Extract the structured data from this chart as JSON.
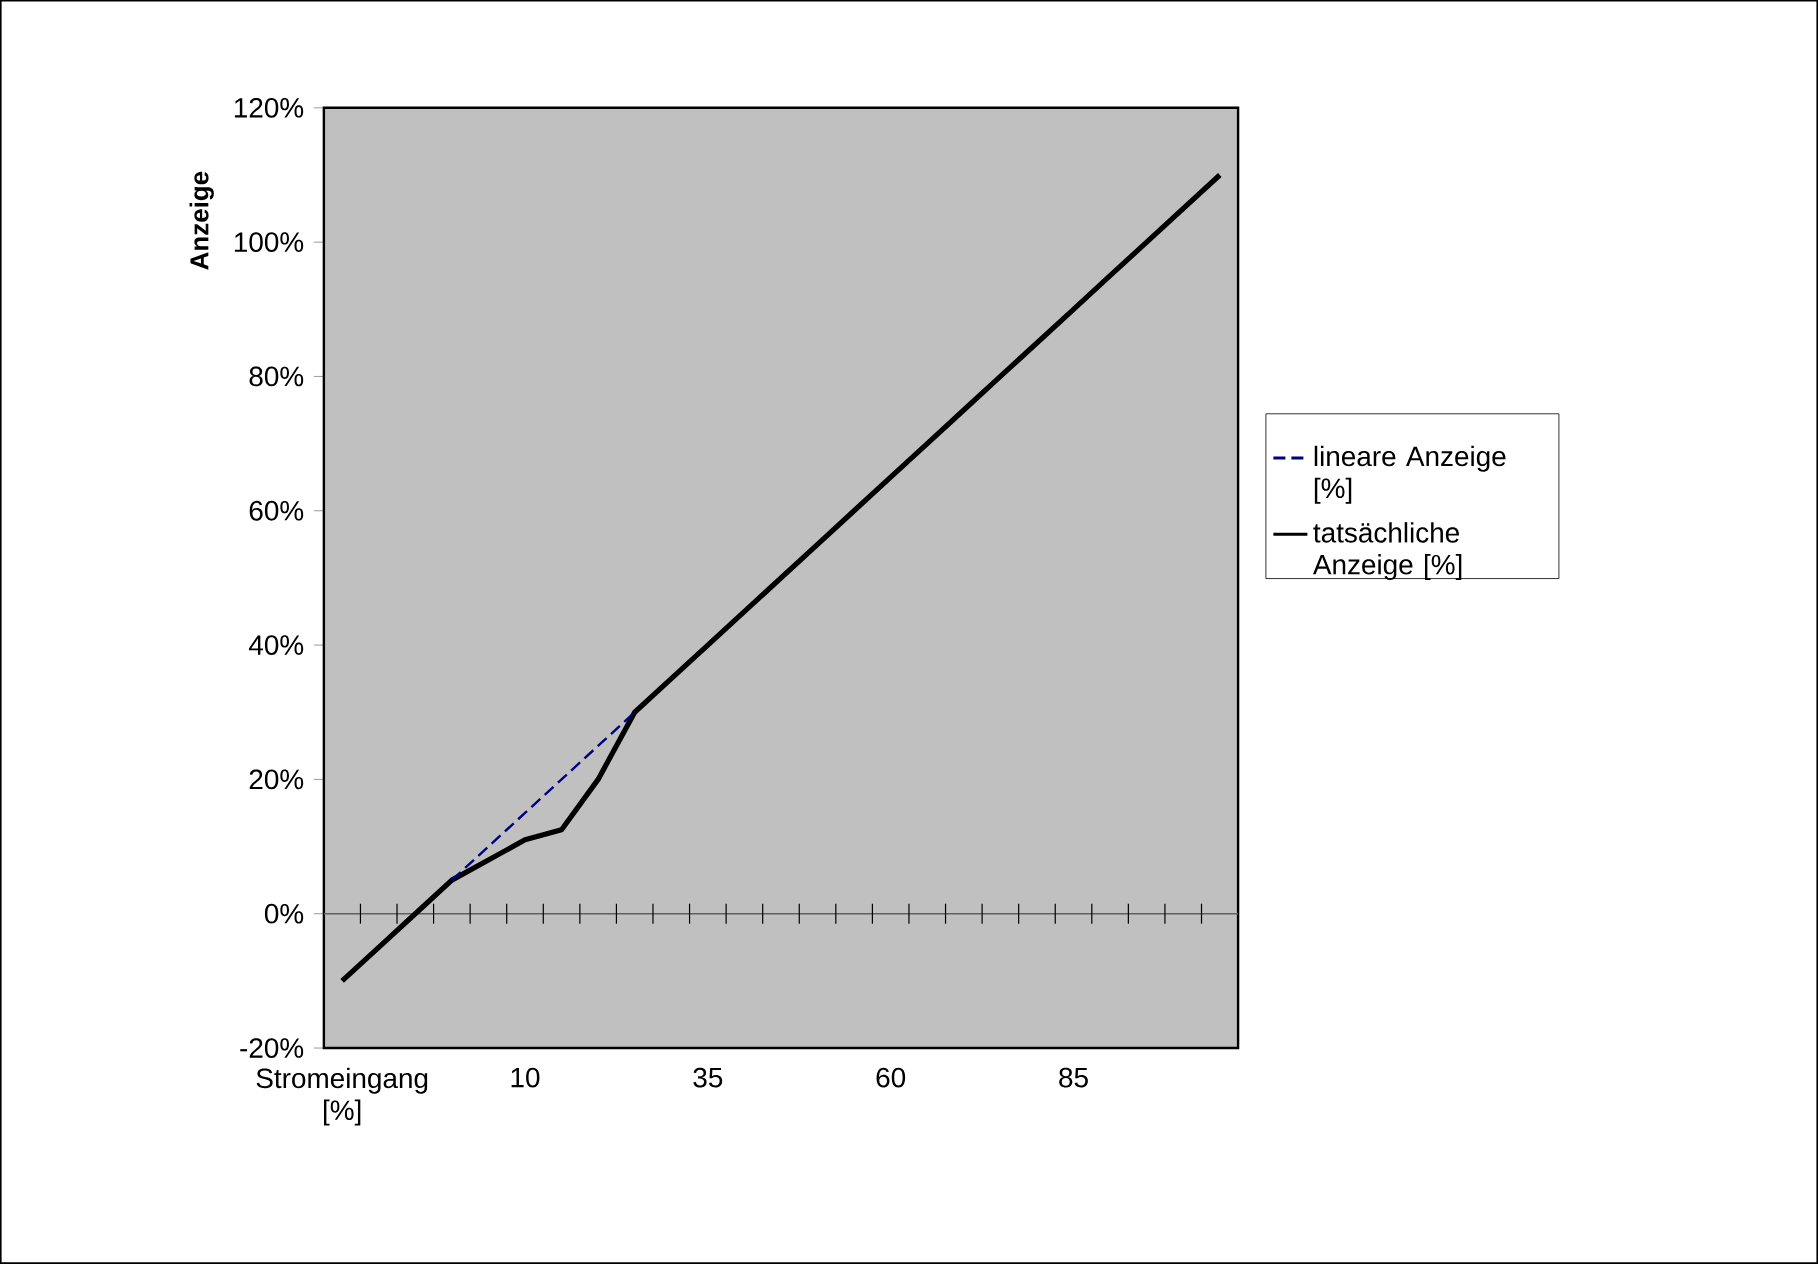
{
  "chart_data": {
    "type": "line",
    "ylabel": "Anzeige",
    "categories": [
      "Stromeingang [%]",
      null,
      null,
      null,
      null,
      "10",
      null,
      null,
      null,
      null,
      "35",
      null,
      null,
      null,
      null,
      "60",
      null,
      null,
      null,
      null,
      "85",
      null,
      null,
      null,
      null
    ],
    "series": [
      {
        "name": "lineare Anzeige [%]",
        "color": "#000080",
        "line_style": "dashed",
        "values": [
          null,
          null,
          null,
          5,
          10,
          15,
          20,
          25,
          30,
          null,
          null,
          null,
          null,
          null,
          null,
          null,
          null,
          null,
          null,
          null,
          null,
          null,
          null,
          null,
          null
        ]
      },
      {
        "name": "tatsächliche Anzeige [%]",
        "color": "#000000",
        "line_style": "solid",
        "values": [
          -10,
          -5,
          0,
          5,
          8,
          11,
          12.5,
          20,
          30,
          35,
          40,
          45,
          50,
          55,
          60,
          65,
          70,
          75,
          80,
          85,
          90,
          95,
          100,
          105,
          110
        ]
      }
    ],
    "ylim": [
      -20,
      120
    ],
    "yticks": [
      {
        "value": -20,
        "label": "-20%"
      },
      {
        "value": 0,
        "label": "0%"
      },
      {
        "value": 20,
        "label": "20%"
      },
      {
        "value": 40,
        "label": "40%"
      },
      {
        "value": 60,
        "label": "60%"
      },
      {
        "value": 80,
        "label": "80%"
      },
      {
        "value": 100,
        "label": "100%"
      },
      {
        "value": 120,
        "label": "120%"
      }
    ],
    "ref_lines": [
      {
        "axis": "y",
        "value": 0,
        "color": "#606060"
      }
    ],
    "marker": "none",
    "legend": "right"
  }
}
